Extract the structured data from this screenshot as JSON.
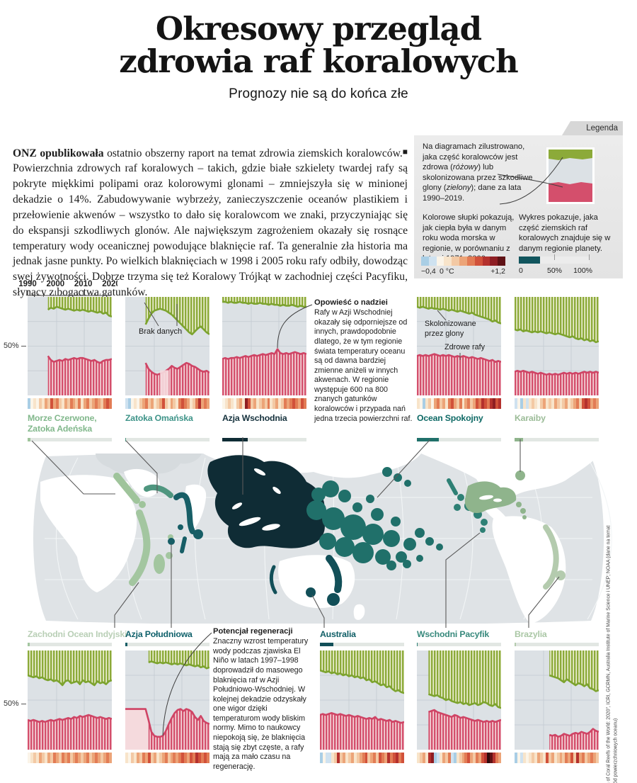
{
  "meta": {
    "title_line1": "Okresowy przegląd",
    "title_line2": "zdrowia raf koralowych",
    "subtitle": "Prognozy nie są do końca złe"
  },
  "intro": {
    "lead": "ONZ opublikowała",
    "body": " ostatnio obszerny raport na temat zdrowia ziemskich koralowców. Powierzchnia zdrowych raf koralowych – takich, gdzie białe szkielety twardej rafy są pokryte miękkimi polipami oraz kolorowymi glonami – zmniejszyła się w minionej dekadzie o 14%. Zabudowywanie wybrzeży, zanieczyszczenie oceanów plastikiem i przełowienie akwenów – wszystko to dało się koralowcom we znaki, przyczyniając się do ekspansji szkodliwych glonów. Ale największym zagrożeniem okazały się rosnące temperatury wody oceanicznej powodujące blaknięcie raf. Ta generalnie zła historia ma jednak jasne punkty. Po wielkich blaknięciach w 1998 i 2005 roku rafy odbiły, dowodząc swej żywotności. Dobrze trzyma się też Koralowy Trójkąt w zachodniej części Pacyfiku, słynący z bogactwa gatunków.",
    "end_mark": "■"
  },
  "legend": {
    "tab": "Legenda",
    "diagram_text_1": "Na diagramach zilustrowano, jaka część koralowców jest zdrowa (",
    "diagram_italic_1": "różowy",
    "diagram_text_2": ") lub skolonizowana przez szkodliwe glony (",
    "diagram_italic_2": "zielony",
    "diagram_text_3": "); dane za lata 1990–2019.",
    "stripes_text": "Kolorowe słupki pokazują, jak ciepła była w danym roku woda morska w regionie, w porównaniu z latami 1971–2000.",
    "share_text": "Wykres pokazuje, jaka część ziemskich raf koralowych znajduje się w danym regionie planety.",
    "temp_scale": {
      "cells": "abwcdefghij",
      "min_label": "−0,4",
      "mid_label": "0 °C",
      "max_label": "+1,2"
    },
    "share_scale": {
      "labels": [
        "0",
        "50%",
        "100%"
      ],
      "fill_pct": 30,
      "fill_color": "#11555d"
    }
  },
  "annotations": {
    "hope_title": "Opowieść o nadziei",
    "hope_body": "Rafy w Azji Wschodniej okazały się odporniejsze od innych, prawdopodobnie dlatego, że w tym regionie świata temperatury oceanu są od dawna bardziej zmienne aniżeli w innych akwenach. W regionie występuje 600 na 800 znanych gatunków koralowców i przypada nań jedna trzecia powierzchni raf.",
    "regen_title": "Potencjał regeneracji",
    "regen_body": "Znaczny wzrost temperatury wody podczas zjawiska El Niño w latach 1997–1998 doprowadził do masowego blaknięcia raf w Azji Południowo-Wschodniej. W kolejnej dekadzie odzyskały one wigor dzięki temperaturom wody bliskim normy. Mimo to naukowcy niepokoją się, że blaknięcia stają się zbyt częste, a rafy mają za mało czasu na regenerację.",
    "no_data": "Brak danych",
    "algae_label": "Skolonizowane przez glony",
    "healthy_label": "Zdrowe rafy"
  },
  "source": "Źródła: „Status of Coral Reefs of the World: 2020”, ICRI, GCRMN, Australia Institute of Marine Science i UNEP; NOAA (dane na temat temperatury wód powierzchniowych oceanu)",
  "colors": {
    "chart_bg": "#dce1e5",
    "grid": "#c3cad1",
    "green_line": "#7ca32e",
    "green_stripe": "#8caa39",
    "green_pale": "#eef0d6",
    "pink_line": "#cf4465",
    "pink_stripe": "#d44f6c",
    "pink_pale": "#f5dadd",
    "ocean": "#dfe3e6",
    "land": "#ffffff",
    "land_alt": "#d6dbde",
    "graticule": "#f2f5f6",
    "share_track": "#e2e7e3",
    "leader": "#5a5a5a"
  },
  "stripe_palette": {
    "a": "#a9cee5",
    "b": "#cfe2f0",
    "w": "#fbf4e8",
    "c": "#f8e4ca",
    "d": "#f3c9a4",
    "e": "#eca478",
    "f": "#e27c55",
    "g": "#d1513a",
    "h": "#b4312d",
    "i": "#8e1e23",
    "j": "#5f1215",
    "k": "#2f0a0d"
  },
  "chart_data": {
    "type": "area",
    "x_range": [
      1990,
      2019
    ],
    "x_ticks": [
      "1990",
      "2000",
      "2010",
      "2020"
    ],
    "y_tick_label": "50%",
    "series_meaning": {
      "green": "udział raf skolonizowanych przez glony (% od góry)",
      "pink": "udział zdrowych raf (% od dołu)"
    },
    "regions": [
      {
        "id": "red-sea",
        "label": "Morze Czerwone, Zatoka Adeńska",
        "bold": false,
        "label_color": "#82b88c",
        "color": "#9fc49b",
        "world_share_pct": 3.5,
        "green": [
          null,
          null,
          null,
          null,
          null,
          null,
          null,
          13,
          11,
          12,
          10,
          11,
          12,
          13,
          12,
          13,
          14,
          13,
          14,
          13,
          14,
          15,
          14,
          15,
          16,
          15,
          17,
          16,
          19,
          20
        ],
        "pink": [
          null,
          null,
          null,
          null,
          null,
          null,
          null,
          40,
          36,
          34,
          35,
          36,
          35,
          37,
          36,
          37,
          38,
          37,
          38,
          38,
          37,
          36,
          35,
          36,
          34,
          33,
          35,
          36,
          36,
          37
        ],
        "stripes": "awcwdcedgefdcedfedfcefdefedfgf"
      },
      {
        "id": "oman",
        "label": "Zatoka Omańska",
        "bold": false,
        "label_color": "#3f9489",
        "color": "#4f967f",
        "world_share_pct": 0.8,
        "green": [
          null,
          null,
          null,
          null,
          null,
          null,
          null,
          28,
          22,
          17,
          14,
          13,
          12,
          13,
          14,
          16,
          18,
          21,
          24,
          27,
          30,
          33,
          36,
          38,
          35,
          32,
          30,
          33,
          36,
          38
        ],
        "pink": [
          null,
          null,
          null,
          null,
          null,
          null,
          null,
          33,
          27,
          24,
          22,
          21,
          22,
          23,
          25,
          27,
          30,
          28,
          27,
          29,
          31,
          33,
          32,
          30,
          29,
          27,
          25,
          24,
          25,
          23
        ],
        "pale_band": [
          12,
          15
        ],
        "stripes": "bawcwdefdecdegdcedcfgfecdfhefe"
      },
      {
        "id": "east-asia",
        "label": "Azja Wschodnia",
        "bold": true,
        "label_color": "#16323d",
        "color": "#0f2c35",
        "world_share_pct": 30,
        "green": [
          5,
          5,
          6,
          5,
          6,
          6,
          5,
          6,
          6,
          7,
          6,
          7,
          7,
          6,
          7,
          7,
          8,
          7,
          8,
          8,
          9,
          8,
          9,
          9,
          8,
          9,
          10,
          9,
          10,
          10
        ],
        "pink": [
          37,
          38,
          37,
          38,
          38,
          39,
          38,
          39,
          40,
          39,
          40,
          41,
          40,
          41,
          42,
          41,
          42,
          43,
          42,
          47,
          43,
          42,
          43,
          42,
          43,
          44,
          43,
          42,
          43,
          42
        ],
        "stripes": "wcdcwdecigdecdedfcdecdfefgfegf"
      },
      {
        "id": "pacific",
        "label": "Ocean Spokojny",
        "bold": true,
        "label_color": "#0f6a66",
        "color": "#20706a",
        "world_share_pct": 26,
        "green": [
          10,
          11,
          10,
          11,
          12,
          11,
          12,
          12,
          13,
          12,
          13,
          14,
          13,
          14,
          15,
          14,
          15,
          16,
          17,
          16,
          18,
          19,
          20,
          21,
          22,
          23,
          25,
          24,
          26,
          27
        ],
        "pink": [
          40,
          41,
          40,
          41,
          40,
          41,
          42,
          41,
          40,
          41,
          40,
          41,
          40,
          39,
          40,
          39,
          40,
          39,
          38,
          39,
          38,
          37,
          38,
          37,
          36,
          35,
          36,
          34,
          35,
          34
        ],
        "stripes": "cwacdwefdecfgedfcefdegfhgfhigh"
      },
      {
        "id": "caribbean",
        "label": "Karaiby",
        "bold": false,
        "label_color": "#9cbc98",
        "color": "#8fb48c",
        "world_share_pct": 10,
        "green": [
          33,
          34,
          33,
          35,
          34,
          35,
          36,
          35,
          36,
          35,
          36,
          37,
          36,
          37,
          38,
          37,
          38,
          39,
          40,
          41,
          40,
          42,
          43,
          42,
          44,
          43,
          45,
          44,
          46,
          45
        ],
        "pink": [
          24,
          25,
          24,
          25,
          24,
          23,
          24,
          23,
          22,
          23,
          22,
          21,
          22,
          21,
          22,
          21,
          22,
          23,
          22,
          23,
          22,
          23,
          22,
          23,
          24,
          23,
          24,
          23,
          24,
          23
        ],
        "stripes": "bwacbcdcwdecdcedcdecdefdghgefe"
      },
      {
        "id": "w-indian",
        "label": "Zachodni Ocean Indyjski",
        "bold": false,
        "label_color": "#b9cfb6",
        "color": "#a3c6a0",
        "world_share_pct": 2.5,
        "green": [
          25,
          26,
          27,
          26,
          28,
          27,
          29,
          30,
          29,
          31,
          30,
          32,
          35,
          31,
          30,
          33,
          32,
          31,
          34,
          30,
          32,
          31,
          33,
          35,
          31,
          33,
          32,
          34,
          31,
          30
        ],
        "pink": [
          30,
          29,
          30,
          29,
          28,
          29,
          28,
          29,
          30,
          29,
          30,
          31,
          30,
          31,
          32,
          31,
          33,
          32,
          34,
          33,
          34,
          35,
          34,
          33,
          32,
          33,
          32,
          31,
          32,
          31
        ],
        "stripes": "wcdcedcedfedfefdefedefdefedefe"
      },
      {
        "id": "s-asia",
        "label": "Azja Południowa",
        "bold": true,
        "label_color": "#0f616b",
        "color": "#175e66",
        "world_share_pct": 2.5,
        "green": [
          null,
          null,
          null,
          null,
          null,
          null,
          null,
          null,
          12,
          11,
          12,
          13,
          12,
          13,
          12,
          13,
          14,
          13,
          14,
          13,
          14,
          15,
          14,
          15,
          16,
          15,
          17,
          16,
          18,
          17
        ],
        "pink": [
          41,
          41,
          41,
          41,
          41,
          41,
          41,
          41,
          30,
          18,
          14,
          13,
          13,
          14,
          19,
          26,
          32,
          37,
          40,
          41,
          39,
          41,
          40,
          38,
          33,
          30,
          34,
          29,
          27,
          26
        ],
        "pink_pale_end": 8,
        "stripes": "cwdcedfegdecdefdefefgfegfhgfgf"
      },
      {
        "id": "australia",
        "label": "Australia",
        "bold": true,
        "label_color": "#0f5e66",
        "color": "#124f58",
        "world_share_pct": 16,
        "green": [
          20,
          21,
          22,
          21,
          23,
          22,
          24,
          23,
          25,
          24,
          26,
          25,
          27,
          26,
          28,
          27,
          30,
          29,
          32,
          31,
          33,
          35,
          34,
          37,
          36,
          39,
          41,
          40,
          42,
          43
        ],
        "pink": [
          35,
          36,
          35,
          36,
          37,
          36,
          35,
          36,
          35,
          34,
          35,
          34,
          33,
          34,
          33,
          32,
          31,
          32,
          31,
          33,
          30,
          31,
          30,
          29,
          30,
          28,
          29,
          28,
          27,
          28
        ],
        "stripes": "awbbcdhdecdecdefgdefdgfehfghfg"
      },
      {
        "id": "e-pacific",
        "label": "Wschodni Pacyfik",
        "bold": false,
        "label_color": "#37897c",
        "color": "#2e8075",
        "world_share_pct": 0.6,
        "green": [
          null,
          null,
          null,
          null,
          44,
          45,
          46,
          45,
          47,
          48,
          50,
          49,
          51,
          52,
          53,
          52,
          54,
          53,
          55,
          54,
          53,
          55,
          54,
          52,
          53,
          55,
          56,
          54,
          57,
          58
        ],
        "pink": [
          null,
          null,
          null,
          null,
          38,
          39,
          40,
          38,
          37,
          36,
          35,
          34,
          33,
          35,
          34,
          32,
          33,
          32,
          31,
          30,
          29,
          30,
          29,
          28,
          29,
          28,
          29,
          28,
          29,
          30
        ],
        "stripes": "cdechiabcedfbacdefgedfeghkjhfe"
      },
      {
        "id": "brazil",
        "label": "Brazylia",
        "bold": false,
        "label_color": "#aac7a5",
        "color": "#b4cbae",
        "world_share_pct": 1.5,
        "green": [
          null,
          null,
          null,
          null,
          null,
          null,
          null,
          null,
          null,
          null,
          null,
          null,
          25,
          26,
          27,
          28,
          30,
          32,
          29,
          31,
          33,
          35,
          33,
          34,
          36,
          34,
          38,
          39,
          41,
          40
        ],
        "pink": [
          null,
          null,
          null,
          null,
          null,
          null,
          null,
          null,
          null,
          null,
          null,
          null,
          15,
          14,
          15,
          13,
          14,
          16,
          15,
          14,
          16,
          17,
          16,
          18,
          17,
          16,
          18,
          21,
          19,
          18
        ],
        "stripes": "awbcwcdcedcgdecdedfegdhefdefed"
      }
    ]
  }
}
